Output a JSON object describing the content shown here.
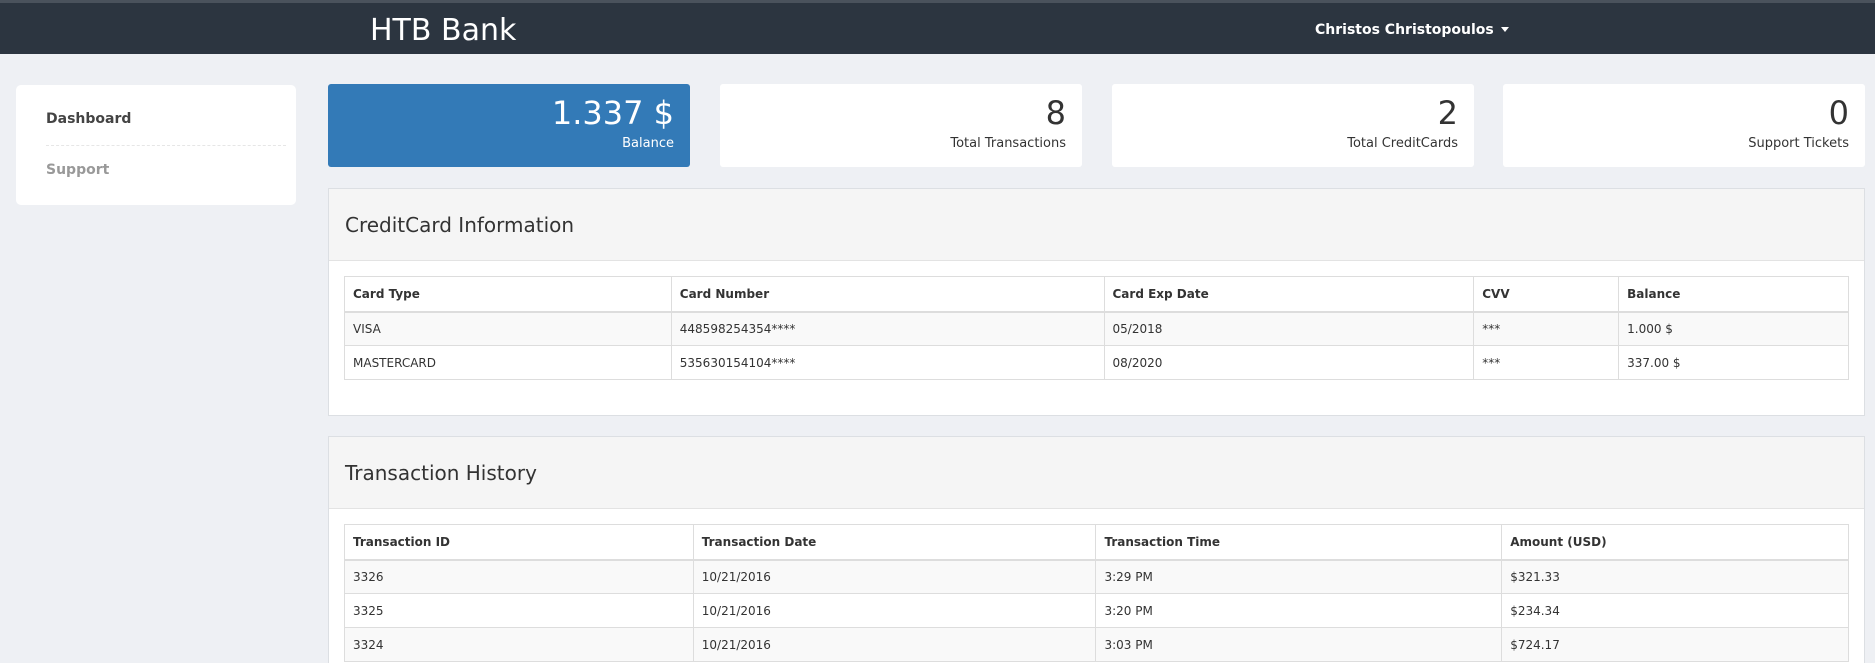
{
  "header": {
    "brand": "HTB Bank",
    "user_name": "Christos Christopoulos"
  },
  "sidebar": {
    "items": [
      {
        "label": "Dashboard"
      },
      {
        "label": "Support"
      }
    ]
  },
  "stats": [
    {
      "value": "1.337 $",
      "label": "Balance"
    },
    {
      "value": "8",
      "label": "Total Transactions"
    },
    {
      "value": "2",
      "label": "Total CreditCards"
    },
    {
      "value": "0",
      "label": "Support Tickets"
    }
  ],
  "creditcards": {
    "title": "CreditCard Information",
    "columns": [
      "Card Type",
      "Card Number",
      "Card Exp Date",
      "CVV",
      "Balance"
    ],
    "rows": [
      [
        "VISA",
        "448598254354****",
        "05/2018",
        "***",
        "1.000 $"
      ],
      [
        "MASTERCARD",
        "535630154104****",
        "08/2020",
        "***",
        "337.00 $"
      ]
    ]
  },
  "transactions": {
    "title": "Transaction History",
    "columns": [
      "Transaction ID",
      "Transaction Date",
      "Transaction Time",
      "Amount (USD)"
    ],
    "rows": [
      [
        "3326",
        "10/21/2016",
        "3:29 PM",
        "$321.33"
      ],
      [
        "3325",
        "10/21/2016",
        "3:20 PM",
        "$234.34"
      ],
      [
        "3324",
        "10/21/2016",
        "3:03 PM",
        "$724.17"
      ]
    ]
  },
  "colors": {
    "topbar": "#2c3540",
    "accent": "#337ab7",
    "background": "#eef0f4"
  }
}
